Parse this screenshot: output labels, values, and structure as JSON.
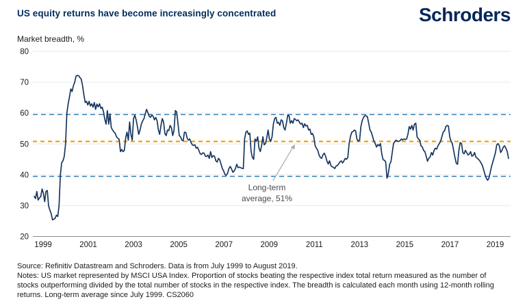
{
  "header": {
    "title": "US equity returns have become increasingly concentrated",
    "logo": "Schroders"
  },
  "chart": {
    "y_axis_title": "Market breadth, %",
    "annotation": {
      "lines": [
        "Long-term",
        "average, 51%"
      ]
    },
    "colors": {
      "brand_navy": "#002B5E",
      "series_line": "#16365F",
      "band_dash_blue": "#2E7CB5",
      "average_dash_orange": "#EBA31B",
      "gridline": "#E9E9E9",
      "axis_line": "#8C8C8C",
      "tick_text": "#1a1a1a",
      "annotation_text": "#4a4a4a",
      "annotation_arrow": "#A9A9A9"
    }
  },
  "chart_data": {
    "type": "line",
    "title": "US equity returns have become increasingly concentrated",
    "ylabel": "Market breadth, %",
    "ylim": [
      20,
      80
    ],
    "y_ticks": [
      80,
      70,
      60,
      50,
      40,
      30,
      20
    ],
    "x_tick_labels": [
      "1999",
      "2001",
      "2003",
      "2005",
      "2007",
      "2009",
      "2011",
      "2013",
      "2015",
      "2017",
      "2019"
    ],
    "x_start": "1999-07",
    "x_end": "2019-08",
    "sampling": "evenly spaced July 1999 - August 2019, values digitized/estimated from chart",
    "grid": "horizontal",
    "legend": "none",
    "reference_lines": [
      {
        "name": "upper-band",
        "value": 59.5,
        "style": "dashed",
        "color": "#2E7CB5",
        "width": 1.5
      },
      {
        "name": "long-term-average",
        "label": "Long-term average, 51%",
        "value": 50.8,
        "style": "dashed",
        "color": "#EBA31B",
        "width": 2.2
      },
      {
        "name": "lower-band",
        "value": 39.5,
        "style": "dashed",
        "color": "#2E7CB5",
        "width": 1.5
      }
    ],
    "series": [
      {
        "name": "US market breadth (% of stocks outperforming MSCI USA, 12-month rolling)",
        "values": [
          33.0,
          32.3,
          34.6,
          31.8,
          32.5,
          32.9,
          35.4,
          34.0,
          31.3,
          34.6,
          34.9,
          29.9,
          28.5,
          27.4,
          25.4,
          25.6,
          25.9,
          26.9,
          26.5,
          30.0,
          40.0,
          43.9,
          44.5,
          46.0,
          50.0,
          60.0,
          63.0,
          65.2,
          67.8,
          67.0,
          68.9,
          70.0,
          72.0,
          72.2,
          72.1,
          71.5,
          71.0,
          68.9,
          66.0,
          63.4,
          63.8,
          62.6,
          63.8,
          62.3,
          63.0,
          61.9,
          63.4,
          61.2,
          62.9,
          62.0,
          63.0,
          61.5,
          61.9,
          60.4,
          58.0,
          56.4,
          60.8,
          56.4,
          59.7,
          55.3,
          54.5,
          53.9,
          53.4,
          52.3,
          51.8,
          51.5,
          47.5,
          48.2,
          47.5,
          47.9,
          51.9,
          53.8,
          51.2,
          57.1,
          53.1,
          51.2,
          58.2,
          59.3,
          57.8,
          55.6,
          53.1,
          54.5,
          56.4,
          57.5,
          58.2,
          59.8,
          61.2,
          60.1,
          59.0,
          58.6,
          59.3,
          59.0,
          57.8,
          58.6,
          57.5,
          54.5,
          53.1,
          56.0,
          58.2,
          57.1,
          53.4,
          52.7,
          54.5,
          54.3,
          56.0,
          55.2,
          52.7,
          54.5,
          60.8,
          60.4,
          56.7,
          52.7,
          52.3,
          51.2,
          51.0,
          53.8,
          53.7,
          51.9,
          51.2,
          51.6,
          50.5,
          49.7,
          49.5,
          49.7,
          48.6,
          48.9,
          47.9,
          46.8,
          46.6,
          47.1,
          47.0,
          46.0,
          45.9,
          46.4,
          45.3,
          47.5,
          45.6,
          46.2,
          46.0,
          44.5,
          44.1,
          45.3,
          44.8,
          43.4,
          42.0,
          41.2,
          40.1,
          39.8,
          40.5,
          42.0,
          42.7,
          41.9,
          40.8,
          41.2,
          42.0,
          43.4,
          42.3,
          42.5,
          42.3,
          42.1,
          42.0,
          51.6,
          53.8,
          54.2,
          53.1,
          53.5,
          47.5,
          45.6,
          45.0,
          51.6,
          50.8,
          52.3,
          48.6,
          47.5,
          49.4,
          52.3,
          49.7,
          50.1,
          52.0,
          54.5,
          51.6,
          50.8,
          52.3,
          56.4,
          58.2,
          58.6,
          56.7,
          57.0,
          56.0,
          57.8,
          57.5,
          55.3,
          54.5,
          56.7,
          59.3,
          59.1,
          56.7,
          57.5,
          56.7,
          58.2,
          57.9,
          57.5,
          57.8,
          57.0,
          56.4,
          56.7,
          55.3,
          56.5,
          55.8,
          56.0,
          54.5,
          54.8,
          53.1,
          53.4,
          52.3,
          49.4,
          48.6,
          47.9,
          46.4,
          45.6,
          45.3,
          46.5,
          47.0,
          46.0,
          44.5,
          43.5,
          44.5,
          43.0,
          42.6,
          42.4,
          42.0,
          42.8,
          43.0,
          43.5,
          44.2,
          44.5,
          43.8,
          44.5,
          45.3,
          45.0,
          45.6,
          50.1,
          52.3,
          53.8,
          54.0,
          54.5,
          54.2,
          51.6,
          50.9,
          51.2,
          55.6,
          57.5,
          58.6,
          59.1,
          59.1,
          58.8,
          56.7,
          54.5,
          53.8,
          52.3,
          50.8,
          50.1,
          49.0,
          49.8,
          49.4,
          50.1,
          46.8,
          44.9,
          44.7,
          44.2,
          38.9,
          40.4,
          43.4,
          44.2,
          47.2,
          50.1,
          50.8,
          51.2,
          50.9,
          50.8,
          51.0,
          51.6,
          51.3,
          51.6,
          51.4,
          51.6,
          53.1,
          55.6,
          54.8,
          56.0,
          54.5,
          56.4,
          56.7,
          52.3,
          51.6,
          51.2,
          49.4,
          49.0,
          47.9,
          47.5,
          46.0,
          44.4,
          45.3,
          45.8,
          47.2,
          46.4,
          47.9,
          48.6,
          48.3,
          49.4,
          50.1,
          50.8,
          52.3,
          53.8,
          54.2,
          55.6,
          56.0,
          55.8,
          52.3,
          50.9,
          50.1,
          47.9,
          45.6,
          43.8,
          43.4,
          47.9,
          50.4,
          50.1,
          47.2,
          46.8,
          47.9,
          47.2,
          46.4,
          46.7,
          47.5,
          46.0,
          46.3,
          47.2,
          45.7,
          45.4,
          45.0,
          44.5,
          43.8,
          43.0,
          41.6,
          40.1,
          38.9,
          38.2,
          38.9,
          40.8,
          42.7,
          44.2,
          45.6,
          47.2,
          49.7,
          50.1,
          49.4,
          47.2,
          47.9,
          49.0,
          49.4,
          48.6,
          47.5,
          45.3
        ]
      }
    ],
    "annotation": "Long-term average, 51%"
  },
  "footer": {
    "source": "Source: Refinitiv Datastream and Schroders. Data is from July 1999 to August 2019.",
    "notes": "Notes: US market represented by MSCI USA Index. Proportion of stocks beating the respective index total return measured as the number of stocks outperforming divided by the total number of stocks in the respective index. The breadth is calculated each month using 12-month rolling returns. Long-term average since July 1999. CS2060"
  }
}
